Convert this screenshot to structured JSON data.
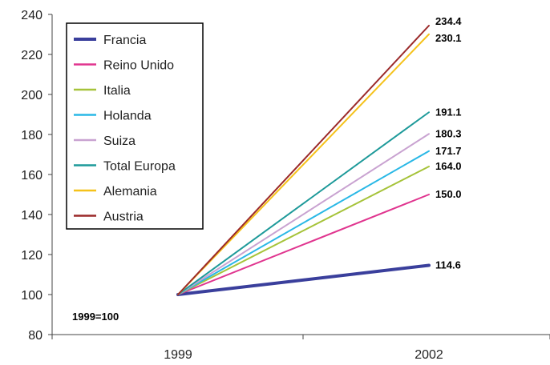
{
  "chart_data": {
    "type": "line",
    "categories": [
      "1999",
      "2002"
    ],
    "ylim": [
      80,
      240
    ],
    "yticks": [
      80,
      100,
      120,
      140,
      160,
      180,
      200,
      220,
      240
    ],
    "grid": false,
    "legend_position": "top-left",
    "annotation": "1999=100",
    "series": [
      {
        "name": "Francia",
        "values": [
          100,
          114.6
        ],
        "label": "114.6",
        "color": "#3a3f9c"
      },
      {
        "name": "Reino Unido",
        "values": [
          100,
          150.0
        ],
        "label": "150.0",
        "color": "#e0358f"
      },
      {
        "name": "Italia",
        "values": [
          100,
          164.0
        ],
        "label": "164.0",
        "color": "#a6c33a"
      },
      {
        "name": "Holanda",
        "values": [
          100,
          171.7
        ],
        "label": "171.7",
        "color": "#2ab8e6"
      },
      {
        "name": "Suiza",
        "values": [
          100,
          180.3
        ],
        "label": "180.3",
        "color": "#c9a3d1"
      },
      {
        "name": "Total Europa",
        "values": [
          100,
          191.1
        ],
        "label": "191.1",
        "color": "#1e9a9a"
      },
      {
        "name": "Alemania",
        "values": [
          100,
          230.1
        ],
        "label": "230.1",
        "color": "#f5c21b"
      },
      {
        "name": "Austria",
        "values": [
          100,
          234.4
        ],
        "label": "234.4",
        "color": "#9b2a2a"
      }
    ]
  }
}
